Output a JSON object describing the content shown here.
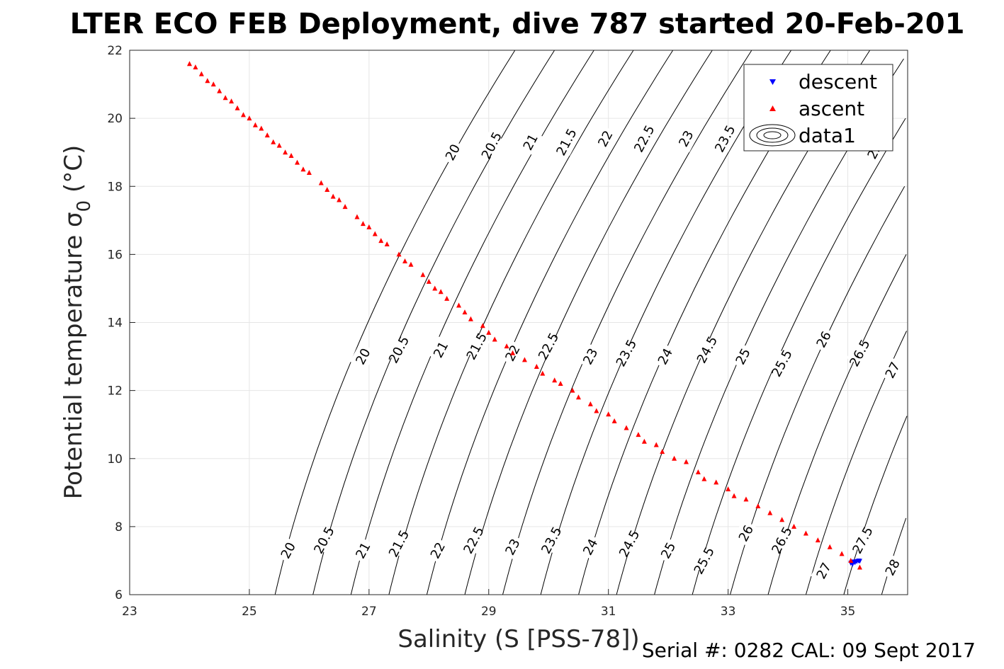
{
  "title": "LTER ECO FEB Deployment, dive 787 started 20-Feb-201",
  "footer": "Serial #: 0282  CAL: 09 Sept 2017",
  "chart_data": {
    "type": "scatter",
    "title": "LTER ECO FEB Deployment, dive 787 started 20-Feb-201",
    "xlabel": "Salinity (S [PSS-78])",
    "ylabel": "Potential temperature σ",
    "ylabel_sub": "0",
    "ylabel_unit": " (°C)",
    "xlim": [
      23,
      36
    ],
    "ylim": [
      6,
      22
    ],
    "xticks": [
      23,
      25,
      27,
      29,
      31,
      33,
      35
    ],
    "yticks": [
      6,
      8,
      10,
      12,
      14,
      16,
      18,
      20,
      22
    ],
    "grid": true,
    "legend_position": "top-right",
    "legend": [
      "descent",
      "ascent",
      "data1"
    ],
    "series": [
      {
        "name": "descent",
        "marker": "triangle-down",
        "color": "#0000ff",
        "points": [
          [
            35.05,
            6.93
          ],
          [
            35.1,
            6.97
          ],
          [
            35.15,
            6.98
          ],
          [
            35.2,
            6.99
          ],
          [
            35.12,
            6.95
          ],
          [
            35.08,
            6.9
          ],
          [
            35.18,
            7.0
          ]
        ]
      },
      {
        "name": "ascent",
        "marker": "triangle-up",
        "color": "#ff0000",
        "points": [
          [
            24.0,
            21.6
          ],
          [
            24.1,
            21.5
          ],
          [
            24.2,
            21.3
          ],
          [
            24.3,
            21.1
          ],
          [
            24.4,
            21.0
          ],
          [
            24.5,
            20.8
          ],
          [
            24.6,
            20.6
          ],
          [
            24.7,
            20.5
          ],
          [
            24.8,
            20.3
          ],
          [
            24.9,
            20.1
          ],
          [
            25.0,
            20.0
          ],
          [
            25.1,
            19.8
          ],
          [
            25.2,
            19.7
          ],
          [
            25.3,
            19.5
          ],
          [
            25.4,
            19.3
          ],
          [
            25.5,
            19.2
          ],
          [
            25.6,
            19.0
          ],
          [
            25.7,
            18.9
          ],
          [
            25.8,
            18.7
          ],
          [
            25.9,
            18.5
          ],
          [
            26.0,
            18.4
          ],
          [
            26.2,
            18.1
          ],
          [
            26.3,
            17.9
          ],
          [
            26.4,
            17.7
          ],
          [
            26.5,
            17.6
          ],
          [
            26.6,
            17.4
          ],
          [
            26.8,
            17.1
          ],
          [
            26.9,
            16.9
          ],
          [
            27.0,
            16.8
          ],
          [
            27.1,
            16.6
          ],
          [
            27.2,
            16.4
          ],
          [
            27.3,
            16.3
          ],
          [
            27.5,
            16.0
          ],
          [
            27.6,
            15.8
          ],
          [
            27.7,
            15.7
          ],
          [
            27.9,
            15.4
          ],
          [
            28.0,
            15.2
          ],
          [
            28.1,
            15.0
          ],
          [
            28.2,
            14.9
          ],
          [
            28.3,
            14.7
          ],
          [
            28.5,
            14.5
          ],
          [
            28.6,
            14.3
          ],
          [
            28.7,
            14.1
          ],
          [
            28.9,
            13.9
          ],
          [
            29.0,
            13.7
          ],
          [
            29.1,
            13.5
          ],
          [
            29.3,
            13.3
          ],
          [
            29.4,
            13.1
          ],
          [
            29.6,
            12.9
          ],
          [
            29.8,
            12.7
          ],
          [
            29.9,
            12.5
          ],
          [
            30.1,
            12.3
          ],
          [
            30.2,
            12.2
          ],
          [
            30.4,
            12.0
          ],
          [
            30.5,
            11.8
          ],
          [
            30.7,
            11.6
          ],
          [
            30.8,
            11.4
          ],
          [
            31.0,
            11.3
          ],
          [
            31.1,
            11.1
          ],
          [
            31.3,
            10.9
          ],
          [
            31.5,
            10.7
          ],
          [
            31.6,
            10.5
          ],
          [
            31.8,
            10.4
          ],
          [
            31.9,
            10.2
          ],
          [
            32.1,
            10.0
          ],
          [
            32.3,
            9.9
          ],
          [
            32.5,
            9.6
          ],
          [
            32.6,
            9.4
          ],
          [
            32.8,
            9.3
          ],
          [
            33.0,
            9.1
          ],
          [
            33.1,
            8.9
          ],
          [
            33.3,
            8.8
          ],
          [
            33.5,
            8.6
          ],
          [
            33.7,
            8.4
          ],
          [
            33.9,
            8.2
          ],
          [
            34.1,
            8.0
          ],
          [
            34.3,
            7.8
          ],
          [
            34.5,
            7.6
          ],
          [
            34.7,
            7.4
          ],
          [
            34.9,
            7.2
          ],
          [
            35.05,
            7.0
          ],
          [
            35.2,
            6.8
          ]
        ]
      }
    ],
    "contour_levels": [
      "20",
      "20.5",
      "21",
      "21.5",
      "22",
      "22.5",
      "23",
      "23.5",
      "24",
      "24.5",
      "25",
      "25.5",
      "26",
      "26.5",
      "27",
      "27.5",
      "28"
    ],
    "contour_labels": [
      {
        "text": "20",
        "s": 28.4,
        "t": 19.0
      },
      {
        "text": "20.5",
        "s": 29.05,
        "t": 19.2
      },
      {
        "text": "21",
        "s": 29.7,
        "t": 19.3
      },
      {
        "text": "21.5",
        "s": 30.3,
        "t": 19.3
      },
      {
        "text": "22",
        "s": 30.95,
        "t": 19.4
      },
      {
        "text": "22.5",
        "s": 31.6,
        "t": 19.4
      },
      {
        "text": "23",
        "s": 32.3,
        "t": 19.4
      },
      {
        "text": "23.5",
        "s": 32.95,
        "t": 19.4
      },
      {
        "text": "24",
        "s": 33.6,
        "t": 19.4
      },
      {
        "text": "24.",
        "s": 34.25,
        "t": 19.4
      },
      {
        "text": "25",
        "s": 34.9,
        "t": 19.4
      },
      {
        "text": "25.5",
        "s": 35.5,
        "t": 19.2
      },
      {
        "text": "20",
        "s": 26.9,
        "t": 13.0
      },
      {
        "text": "20.5",
        "s": 27.5,
        "t": 13.2
      },
      {
        "text": "21",
        "s": 28.2,
        "t": 13.2
      },
      {
        "text": "21.5",
        "s": 28.8,
        "t": 13.3
      },
      {
        "text": "22",
        "s": 29.4,
        "t": 13.1
      },
      {
        "text": "22.5",
        "s": 30.0,
        "t": 13.3
      },
      {
        "text": "23",
        "s": 30.7,
        "t": 13.0
      },
      {
        "text": "23.5",
        "s": 31.3,
        "t": 13.1
      },
      {
        "text": "24",
        "s": 31.95,
        "t": 13.0
      },
      {
        "text": "24.5",
        "s": 32.65,
        "t": 13.2
      },
      {
        "text": "25",
        "s": 33.25,
        "t": 13.0
      },
      {
        "text": "25.5",
        "s": 33.9,
        "t": 12.8
      },
      {
        "text": "26",
        "s": 34.6,
        "t": 13.5
      },
      {
        "text": "26.5",
        "s": 35.2,
        "t": 13.1
      },
      {
        "text": "27",
        "s": 35.75,
        "t": 12.6
      },
      {
        "text": "20",
        "s": 25.65,
        "t": 7.3
      },
      {
        "text": "20.5",
        "s": 26.25,
        "t": 7.6
      },
      {
        "text": "21",
        "s": 26.9,
        "t": 7.3
      },
      {
        "text": "21.5",
        "s": 27.5,
        "t": 7.5
      },
      {
        "text": "22",
        "s": 28.15,
        "t": 7.3
      },
      {
        "text": "22.5",
        "s": 28.75,
        "t": 7.6
      },
      {
        "text": "23",
        "s": 29.4,
        "t": 7.4
      },
      {
        "text": "23.5",
        "s": 30.05,
        "t": 7.6
      },
      {
        "text": "24",
        "s": 30.7,
        "t": 7.4
      },
      {
        "text": "24.5",
        "s": 31.35,
        "t": 7.5
      },
      {
        "text": "25",
        "s": 32.0,
        "t": 7.3
      },
      {
        "text": "25.5",
        "s": 32.6,
        "t": 7.0
      },
      {
        "text": "26",
        "s": 33.3,
        "t": 7.8
      },
      {
        "text": "26.5",
        "s": 33.9,
        "t": 7.6
      },
      {
        "text": "27",
        "s": 34.6,
        "t": 6.7
      },
      {
        "text": "27.5",
        "s": 35.25,
        "t": 7.6
      },
      {
        "text": "28",
        "s": 35.75,
        "t": 6.8
      }
    ]
  }
}
